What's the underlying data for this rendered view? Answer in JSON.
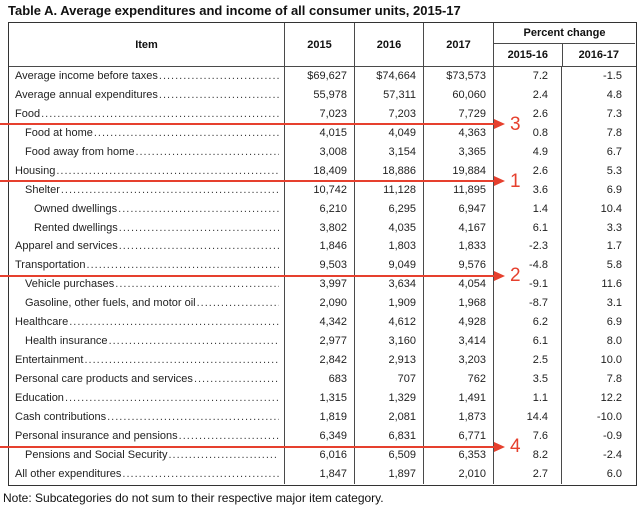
{
  "page": {
    "title": "Table A. Average expenditures and income of all consumer units, 2015-17",
    "note": "Note: Subcategories do not sum to their respective major item category."
  },
  "table": {
    "headers": {
      "item": "Item",
      "years": [
        "2015",
        "2016",
        "2017"
      ],
      "percent_change": "Percent change",
      "percent_sub": [
        "2015-16",
        "2016-17"
      ]
    },
    "rows": [
      {
        "item": "Average income before taxes",
        "indent": 0,
        "values": [
          "$69,627",
          "$74,664",
          "$73,573",
          "7.2",
          "-1.5"
        ]
      },
      {
        "item": "Average annual expenditures",
        "indent": 0,
        "values": [
          "55,978",
          "57,311",
          "60,060",
          "2.4",
          "4.8"
        ]
      },
      {
        "item": "Food",
        "indent": 0,
        "values": [
          "7,023",
          "7,203",
          "7,729",
          "2.6",
          "7.3"
        ]
      },
      {
        "item": "Food at home",
        "indent": 1,
        "values": [
          "4,015",
          "4,049",
          "4,363",
          "0.8",
          "7.8"
        ]
      },
      {
        "item": "Food away from home",
        "indent": 1,
        "values": [
          "3,008",
          "3,154",
          "3,365",
          "4.9",
          "6.7"
        ]
      },
      {
        "item": "Housing",
        "indent": 0,
        "values": [
          "18,409",
          "18,886",
          "19,884",
          "2.6",
          "5.3"
        ]
      },
      {
        "item": "Shelter",
        "indent": 1,
        "values": [
          "10,742",
          "11,128",
          "11,895",
          "3.6",
          "6.9"
        ]
      },
      {
        "item": "Owned dwellings",
        "indent": 2,
        "values": [
          "6,210",
          "6,295",
          "6,947",
          "1.4",
          "10.4"
        ]
      },
      {
        "item": "Rented dwellings",
        "indent": 2,
        "values": [
          "3,802",
          "4,035",
          "4,167",
          "6.1",
          "3.3"
        ]
      },
      {
        "item": "Apparel and services",
        "indent": 0,
        "values": [
          "1,846",
          "1,803",
          "1,833",
          "-2.3",
          "1.7"
        ]
      },
      {
        "item": "Transportation",
        "indent": 0,
        "values": [
          "9,503",
          "9,049",
          "9,576",
          "-4.8",
          "5.8"
        ]
      },
      {
        "item": "Vehicle purchases",
        "indent": 1,
        "values": [
          "3,997",
          "3,634",
          "4,054",
          "-9.1",
          "11.6"
        ]
      },
      {
        "item": "Gasoline, other fuels, and motor oil",
        "indent": 1,
        "values": [
          "2,090",
          "1,909",
          "1,968",
          "-8.7",
          "3.1"
        ]
      },
      {
        "item": "Healthcare",
        "indent": 0,
        "values": [
          "4,342",
          "4,612",
          "4,928",
          "6.2",
          "6.9"
        ]
      },
      {
        "item": "Health insurance",
        "indent": 1,
        "values": [
          "2,977",
          "3,160",
          "3,414",
          "6.1",
          "8.0"
        ]
      },
      {
        "item": "Entertainment",
        "indent": 0,
        "values": [
          "2,842",
          "2,913",
          "3,203",
          "2.5",
          "10.0"
        ]
      },
      {
        "item": "Personal care products and services",
        "indent": 0,
        "values": [
          "683",
          "707",
          "762",
          "3.5",
          "7.8"
        ]
      },
      {
        "item": "Education",
        "indent": 0,
        "values": [
          "1,315",
          "1,329",
          "1,491",
          "1.1",
          "12.2"
        ]
      },
      {
        "item": "Cash contributions",
        "indent": 0,
        "values": [
          "1,819",
          "2,081",
          "1,873",
          "14.4",
          "-10.0"
        ]
      },
      {
        "item": "Personal insurance and pensions",
        "indent": 0,
        "values": [
          "6,349",
          "6,831",
          "6,771",
          "7.6",
          "-0.9"
        ]
      },
      {
        "item": "Pensions and Social Security",
        "indent": 1,
        "values": [
          "6,016",
          "6,509",
          "6,353",
          "8.2",
          "-2.4"
        ]
      },
      {
        "item": "All other expenditures",
        "indent": 0,
        "values": [
          "1,847",
          "1,897",
          "2,010",
          "2.7",
          "6.0"
        ]
      }
    ]
  },
  "annotations": {
    "arrow_color": "#e6402e",
    "arrows": [
      {
        "label": "3",
        "after_row": 3
      },
      {
        "label": "1",
        "after_row": 6
      },
      {
        "label": "2",
        "after_row": 11
      },
      {
        "label": "4",
        "after_row": 20
      }
    ]
  }
}
